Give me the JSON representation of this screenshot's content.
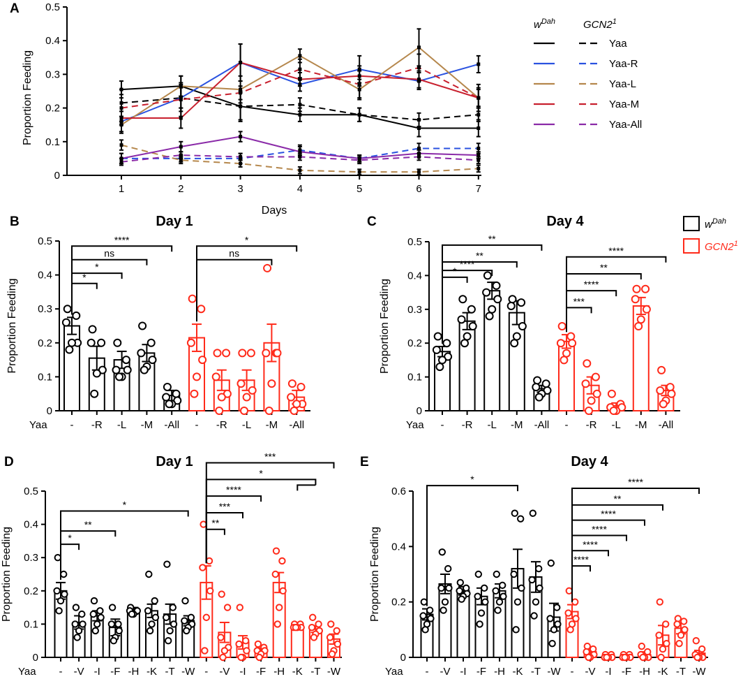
{
  "colors": {
    "wdah": "#000000",
    "gcn2": "#ff2a1a",
    "yaa": "#000000",
    "yaa_r": "#2a52e0",
    "yaa_l": "#b5874c",
    "yaa_m": "#c8202e",
    "yaa_all": "#8a2aa8"
  },
  "chart_data": [
    {
      "panel": "A",
      "type": "line",
      "title": "",
      "xlabel": "Days",
      "ylabel": "Proportion Feeding",
      "x": [
        1,
        2,
        3,
        4,
        5,
        6,
        7
      ],
      "xticks": [
        "1",
        "2",
        "3",
        "4",
        "5",
        "6",
        "7"
      ],
      "ylim": [
        0,
        0.5
      ],
      "yticks": [
        "0",
        "0.1",
        "0.2",
        "0.3",
        "0.4",
        "0.5"
      ],
      "legend": {
        "position": "right",
        "col_headers": [
          "wDah",
          "GCN2 1"
        ],
        "col_header_parts": [
          [
            "w",
            "Dah"
          ],
          [
            "GCN2",
            "1"
          ]
        ],
        "labels": [
          "Yaa",
          "Yaa-R",
          "Yaa-L",
          "Yaa-M",
          "Yaa-All"
        ]
      },
      "series": [
        {
          "name": "Yaa",
          "genotype": "wDah",
          "color": "yaa",
          "dashed": false,
          "values": [
            0.255,
            0.265,
            0.205,
            0.18,
            0.18,
            0.14,
            0.14
          ],
          "err": [
            0.025,
            0.03,
            0.045,
            0.02,
            0.02,
            0.025,
            0.025
          ]
        },
        {
          "name": "Yaa",
          "genotype": "GCN2 1",
          "color": "yaa",
          "dashed": true,
          "values": [
            0.215,
            0.23,
            0.205,
            0.21,
            0.18,
            0.165,
            0.18
          ],
          "err": [
            0.04,
            0.03,
            0.04,
            0.02,
            0.02,
            0.02,
            0.02
          ]
        },
        {
          "name": "Yaa-R",
          "genotype": "wDah",
          "color": "yaa_r",
          "dashed": false,
          "values": [
            0.16,
            0.23,
            0.335,
            0.27,
            0.315,
            0.28,
            0.33
          ],
          "err": [
            0.03,
            0.04,
            0.055,
            0.02,
            0.04,
            0.025,
            0.025
          ]
        },
        {
          "name": "Yaa-R",
          "genotype": "GCN2 1",
          "color": "yaa_r",
          "dashed": true,
          "values": [
            0.05,
            0.05,
            0.05,
            0.075,
            0.05,
            0.08,
            0.08
          ],
          "err": [
            0.015,
            0.01,
            0.015,
            0.015,
            0.01,
            0.015,
            0.015
          ]
        },
        {
          "name": "Yaa-L",
          "genotype": "wDah",
          "color": "yaa_l",
          "dashed": false,
          "values": [
            0.15,
            0.265,
            0.255,
            0.355,
            0.255,
            0.38,
            0.23
          ],
          "err": [
            0.025,
            0.03,
            0.04,
            0.02,
            0.03,
            0.055,
            0.04
          ]
        },
        {
          "name": "Yaa-L",
          "genotype": "GCN2 1",
          "color": "yaa_l",
          "dashed": true,
          "values": [
            0.09,
            0.045,
            0.035,
            0.015,
            0.01,
            0.01,
            0.02
          ],
          "err": [
            0.015,
            0.01,
            0.01,
            0.01,
            0.008,
            0.008,
            0.01
          ]
        },
        {
          "name": "Yaa-M",
          "genotype": "wDah",
          "color": "yaa_m",
          "dashed": false,
          "values": [
            0.17,
            0.17,
            0.335,
            0.285,
            0.295,
            0.285,
            0.23
          ],
          "err": [
            0.02,
            0.03,
            0.055,
            0.02,
            0.03,
            0.025,
            0.025
          ]
        },
        {
          "name": "Yaa-M",
          "genotype": "GCN2 1",
          "color": "yaa_m",
          "dashed": true,
          "values": [
            0.2,
            0.225,
            0.245,
            0.315,
            0.27,
            0.32,
            0.23
          ],
          "err": [
            0.04,
            0.05,
            0.02,
            0.03,
            0.04,
            0.04,
            0.03
          ]
        },
        {
          "name": "Yaa-All",
          "genotype": "wDah",
          "color": "yaa_all",
          "dashed": false,
          "values": [
            0.05,
            0.085,
            0.115,
            0.07,
            0.05,
            0.065,
            0.06
          ],
          "err": [
            0.015,
            0.015,
            0.015,
            0.015,
            0.01,
            0.01,
            0.01
          ]
        },
        {
          "name": "Yaa-All",
          "genotype": "GCN2 1",
          "color": "yaa_all",
          "dashed": true,
          "values": [
            0.04,
            0.06,
            0.055,
            0.055,
            0.045,
            0.055,
            0.045
          ],
          "err": [
            0.01,
            0.01,
            0.01,
            0.01,
            0.01,
            0.01,
            0.01
          ]
        }
      ]
    },
    {
      "panel": "B",
      "type": "bar",
      "title": "Day 1",
      "ylabel": "Proportion Feeding",
      "xlabel_prefix": "Yaa",
      "ylim": [
        0,
        0.5
      ],
      "yticks": [
        "0",
        "0.1",
        "0.2",
        "0.3",
        "0.4",
        "0.5"
      ],
      "categories": [
        "-",
        "-R",
        "-L",
        "-M",
        "-All",
        "-",
        "-R",
        "-L",
        "-M",
        "-All"
      ],
      "groups": [
        "wDah",
        "wDah",
        "wDah",
        "wDah",
        "wDah",
        "GCN2 1",
        "GCN2 1",
        "GCN2 1",
        "GCN2 1",
        "GCN2 1"
      ],
      "values": [
        0.25,
        0.155,
        0.15,
        0.17,
        0.045,
        0.215,
        0.09,
        0.09,
        0.2,
        0.04
      ],
      "sem": [
        0.025,
        0.035,
        0.025,
        0.025,
        0.015,
        0.04,
        0.03,
        0.03,
        0.055,
        0.02
      ],
      "points": [
        [
          0.3,
          0.28,
          0.26,
          0.2,
          0.2,
          0.18
        ],
        [
          0.24,
          0.2,
          0.2,
          0.12,
          0.11,
          0.05
        ],
        [
          0.2,
          0.15,
          0.12,
          0.12,
          0.1,
          0.1
        ],
        [
          0.25,
          0.2,
          0.17,
          0.15,
          0.13,
          0.12
        ],
        [
          0.07,
          0.05,
          0.04,
          0.03,
          0.02,
          0.02
        ],
        [
          0.33,
          0.3,
          0.2,
          0.15,
          0.1,
          0.05
        ],
        [
          0.17,
          0.17,
          0.1,
          0.05,
          0.04,
          0.0
        ],
        [
          0.17,
          0.17,
          0.08,
          0.06,
          0.04,
          0.0
        ],
        [
          0.42,
          0.17,
          0.17,
          0.17,
          0.08,
          0.0
        ],
        [
          0.08,
          0.07,
          0.04,
          0.02,
          0.02,
          0.0
        ]
      ],
      "sig": [
        {
          "from": 0,
          "to": 1,
          "label": "*",
          "y": 0.375
        },
        {
          "from": 0,
          "to": 2,
          "label": "*",
          "y": 0.405
        },
        {
          "from": 0,
          "to": 3,
          "label": "ns",
          "y": 0.445
        },
        {
          "from": 0,
          "to": 4,
          "label": "****",
          "y": 0.485
        },
        {
          "from": 5,
          "to": 8,
          "label": "ns",
          "y": 0.445
        },
        {
          "from": 5,
          "to": 9,
          "label": "*",
          "y": 0.485
        }
      ],
      "legend_labels": [
        "wDah",
        "GCN2 1"
      ],
      "legend_label_parts": [
        [
          "w",
          "Dah"
        ],
        [
          "GCN2",
          "1"
        ]
      ]
    },
    {
      "panel": "C",
      "type": "bar",
      "title": "Day 4",
      "ylabel": "Proportion Feeding",
      "xlabel_prefix": "Yaa",
      "ylim": [
        0,
        0.5
      ],
      "yticks": [
        "0",
        "0.1",
        "0.2",
        "0.3",
        "0.4",
        "0.5"
      ],
      "categories": [
        "-",
        "-R",
        "-L",
        "-M",
        "-All",
        "-",
        "-R",
        "-L",
        "-M",
        "-All"
      ],
      "groups": [
        "wDah",
        "wDah",
        "wDah",
        "wDah",
        "wDah",
        "GCN2 1",
        "GCN2 1",
        "GCN2 1",
        "GCN2 1",
        "GCN2 1"
      ],
      "values": [
        0.175,
        0.265,
        0.355,
        0.29,
        0.065,
        0.205,
        0.075,
        0.015,
        0.31,
        0.06
      ],
      "sem": [
        0.015,
        0.025,
        0.025,
        0.035,
        0.01,
        0.02,
        0.025,
        0.008,
        0.025,
        0.015
      ],
      "points": [
        [
          0.22,
          0.2,
          0.18,
          0.16,
          0.15,
          0.13
        ],
        [
          0.33,
          0.3,
          0.27,
          0.25,
          0.22,
          0.2
        ],
        [
          0.4,
          0.37,
          0.35,
          0.33,
          0.3,
          0.28
        ],
        [
          0.33,
          0.32,
          0.31,
          0.25,
          0.22,
          0.2
        ],
        [
          0.09,
          0.08,
          0.07,
          0.06,
          0.05,
          0.04
        ],
        [
          0.25,
          0.22,
          0.2,
          0.2,
          0.17,
          0.15
        ],
        [
          0.14,
          0.1,
          0.08,
          0.05,
          0.03,
          0.0
        ],
        [
          0.05,
          0.02,
          0.01,
          0.01,
          0.0,
          0.0
        ],
        [
          0.36,
          0.36,
          0.33,
          0.3,
          0.27,
          0.25
        ],
        [
          0.12,
          0.07,
          0.06,
          0.05,
          0.03,
          0.02
        ]
      ],
      "sig": [
        {
          "from": 0,
          "to": 1,
          "label": "*",
          "y": 0.395
        },
        {
          "from": 0,
          "to": 3,
          "label": "**",
          "y": 0.44
        },
        {
          "from": 0,
          "to": 2,
          "label": "****",
          "y": 0.415
        },
        {
          "from": 0,
          "to": 4,
          "label": "**",
          "y": 0.49
        },
        {
          "from": 5,
          "to": 6,
          "label": "***",
          "y": 0.305
        },
        {
          "from": 5,
          "to": 7,
          "label": "****",
          "y": 0.355
        },
        {
          "from": 5,
          "to": 8,
          "label": "**",
          "y": 0.405
        },
        {
          "from": 5,
          "to": 9,
          "label": "****",
          "y": 0.455
        }
      ]
    },
    {
      "panel": "D",
      "type": "bar",
      "title": "Day 1",
      "ylabel": "Proportion Feeding",
      "xlabel_prefix": "Yaa",
      "ylim": [
        0,
        0.5
      ],
      "yticks": [
        "0",
        "0.1",
        "0.2",
        "0.3",
        "0.4",
        "0.5"
      ],
      "categories": [
        "-",
        "-V",
        "-I",
        "-F",
        "-H",
        "-K",
        "-T",
        "-W",
        "-",
        "-V",
        "-I",
        "-F",
        "-H",
        "-K",
        "-T",
        "-W"
      ],
      "groups": [
        "wDah",
        "wDah",
        "wDah",
        "wDah",
        "wDah",
        "wDah",
        "wDah",
        "wDah",
        "GCN2 1",
        "GCN2 1",
        "GCN2 1",
        "GCN2 1",
        "GCN2 1",
        "GCN2 1",
        "GCN2 1",
        "GCN2 1"
      ],
      "values": [
        0.2,
        0.105,
        0.125,
        0.09,
        0.14,
        0.14,
        0.13,
        0.11,
        0.225,
        0.075,
        0.045,
        0.02,
        0.225,
        0.095,
        0.085,
        0.055
      ],
      "sem": [
        0.025,
        0.02,
        0.015,
        0.025,
        0.01,
        0.02,
        0.03,
        0.015,
        0.05,
        0.03,
        0.02,
        0.008,
        0.03,
        0.005,
        0.01,
        0.015
      ],
      "points": [
        [
          0.3,
          0.25,
          0.2,
          0.19,
          0.17,
          0.14
        ],
        [
          0.15,
          0.13,
          0.1,
          0.1,
          0.08,
          0.06
        ],
        [
          0.17,
          0.14,
          0.13,
          0.12,
          0.1,
          0.08
        ],
        [
          0.15,
          0.1,
          0.1,
          0.08,
          0.06,
          0.05
        ],
        [
          0.15,
          0.14,
          0.14,
          0.14,
          0.13,
          0.13
        ],
        [
          0.25,
          0.17,
          0.14,
          0.12,
          0.1,
          0.08
        ],
        [
          0.28,
          0.15,
          0.12,
          0.1,
          0.08,
          0.05
        ],
        [
          0.17,
          0.12,
          0.11,
          0.1,
          0.09,
          0.08
        ],
        [
          0.4,
          0.29,
          0.27,
          0.2,
          0.12,
          0.02
        ],
        [
          0.19,
          0.15,
          0.06,
          0.03,
          0.02,
          0.0
        ],
        [
          0.15,
          0.05,
          0.04,
          0.02,
          0.0,
          0.0
        ],
        [
          0.04,
          0.03,
          0.02,
          0.02,
          0.01,
          0.0
        ],
        [
          0.32,
          0.29,
          0.25,
          0.2,
          0.15,
          0.1
        ],
        [
          0.1,
          0.1,
          0.09,
          0.09,
          0.09,
          0.09
        ],
        [
          0.12,
          0.1,
          0.09,
          0.08,
          0.07,
          0.06
        ],
        [
          0.1,
          0.08,
          0.06,
          0.04,
          0.02,
          0.01
        ]
      ],
      "sig": [
        {
          "from": 0,
          "to": 1,
          "label": "*",
          "y": 0.34
        },
        {
          "from": 0,
          "to": 3,
          "label": "**",
          "y": 0.38
        },
        {
          "from": 0,
          "to": 7,
          "label": "*",
          "y": 0.44
        },
        {
          "from": 8,
          "to": 9,
          "label": "**",
          "y": 0.385
        },
        {
          "from": 8,
          "to": 10,
          "label": "***",
          "y": 0.435
        },
        {
          "from": 8,
          "to": 11,
          "label": "****",
          "y": 0.485
        },
        {
          "from": 8,
          "to": 14,
          "label": "*",
          "y": 0.535,
          "bracket_to": 13
        },
        {
          "from": 8,
          "to": 15,
          "label": "***",
          "y": 0.585
        }
      ]
    },
    {
      "panel": "E",
      "type": "bar",
      "title": "Day 4",
      "ylabel": "Proportion Feeding",
      "xlabel_prefix": "Yaa",
      "ylim": [
        0,
        0.6
      ],
      "yticks": [
        "0",
        "0.2",
        "0.4",
        "0.6"
      ],
      "categories": [
        "-",
        "-V",
        "-I",
        "-F",
        "-H",
        "-K",
        "-T",
        "-W",
        "-",
        "-V",
        "-I",
        "-F",
        "-H",
        "-K",
        "-T",
        "-W"
      ],
      "groups": [
        "wDah",
        "wDah",
        "wDah",
        "wDah",
        "wDah",
        "wDah",
        "wDah",
        "wDah",
        "GCN2 1",
        "GCN2 1",
        "GCN2 1",
        "GCN2 1",
        "GCN2 1",
        "GCN2 1",
        "GCN2 1",
        "GCN2 1"
      ],
      "values": [
        0.155,
        0.265,
        0.24,
        0.22,
        0.24,
        0.32,
        0.29,
        0.145,
        0.165,
        0.02,
        0.005,
        0.005,
        0.01,
        0.08,
        0.105,
        0.015
      ],
      "sem": [
        0.02,
        0.035,
        0.015,
        0.03,
        0.025,
        0.07,
        0.055,
        0.05,
        0.025,
        0.01,
        0.005,
        0.005,
        0.01,
        0.035,
        0.02,
        0.01
      ],
      "points": [
        [
          0.2,
          0.17,
          0.15,
          0.14,
          0.12,
          0.1
        ],
        [
          0.38,
          0.32,
          0.25,
          0.25,
          0.2,
          0.17
        ],
        [
          0.27,
          0.25,
          0.24,
          0.23,
          0.22,
          0.21
        ],
        [
          0.3,
          0.25,
          0.22,
          0.2,
          0.16,
          0.12
        ],
        [
          0.3,
          0.26,
          0.24,
          0.22,
          0.2,
          0.17
        ],
        [
          0.52,
          0.5,
          0.3,
          0.25,
          0.2,
          0.1
        ],
        [
          0.52,
          0.32,
          0.28,
          0.25,
          0.2,
          0.15
        ],
        [
          0.34,
          0.18,
          0.14,
          0.12,
          0.1,
          0.05
        ],
        [
          0.24,
          0.2,
          0.16,
          0.14,
          0.12,
          0.1
        ],
        [
          0.04,
          0.03,
          0.02,
          0.01,
          0.0,
          0.0
        ],
        [
          0.01,
          0.01,
          0.0,
          0.0,
          0.0,
          0.0
        ],
        [
          0.01,
          0.01,
          0.0,
          0.0,
          0.0,
          0.0
        ],
        [
          0.04,
          0.02,
          0.01,
          0.0,
          0.0,
          0.0
        ],
        [
          0.2,
          0.12,
          0.08,
          0.05,
          0.03,
          0.0
        ],
        [
          0.14,
          0.13,
          0.12,
          0.1,
          0.08,
          0.05
        ],
        [
          0.06,
          0.03,
          0.01,
          0.0,
          0.0,
          0.0
        ]
      ],
      "sig": [
        {
          "from": 0,
          "to": 5,
          "label": "*",
          "y": 0.62
        },
        {
          "from": 8,
          "to": 9,
          "label": "****",
          "y": 0.33
        },
        {
          "from": 8,
          "to": 10,
          "label": "****",
          "y": 0.385
        },
        {
          "from": 8,
          "to": 11,
          "label": "****",
          "y": 0.44
        },
        {
          "from": 8,
          "to": 12,
          "label": "****",
          "y": 0.495
        },
        {
          "from": 8,
          "to": 13,
          "label": "**",
          "y": 0.55
        },
        {
          "from": 8,
          "to": 15,
          "label": "****",
          "y": 0.61
        }
      ]
    }
  ]
}
